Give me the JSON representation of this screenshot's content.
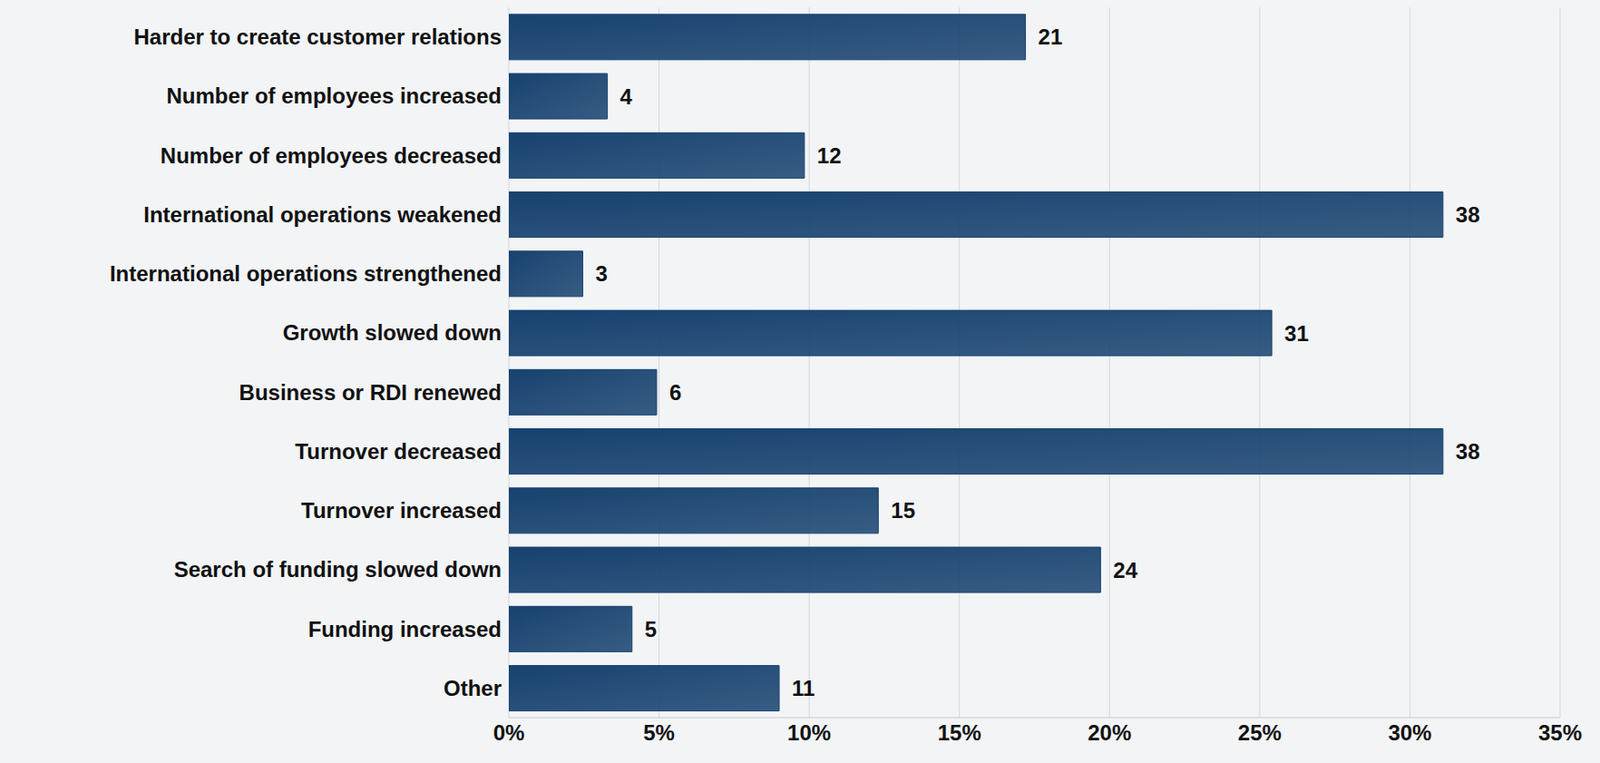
{
  "chart_data": {
    "type": "bar",
    "orientation": "horizontal",
    "categories": [
      "Harder to create customer relations",
      "Number of employees increased",
      "Number of employees decreased",
      "International operations weakened",
      "International operations strengthened",
      "Growth slowed down",
      "Business or RDI renewed",
      "Turnover decreased",
      "Turnover increased",
      "Search of funding slowed down",
      "Funding increased",
      "Other"
    ],
    "values": [
      17.2,
      3.28,
      9.84,
      31.1,
      2.46,
      25.4,
      4.92,
      31.1,
      12.3,
      19.7,
      4.1,
      9.0
    ],
    "counts": [
      21,
      4,
      12,
      38,
      3,
      31,
      6,
      38,
      15,
      24,
      5,
      11
    ],
    "color": "#17426f",
    "xlim": [
      0,
      35
    ],
    "xticks": [
      {
        "value": 0,
        "label": "0%"
      },
      {
        "value": 5,
        "label": "5%"
      },
      {
        "value": 10,
        "label": "10%"
      },
      {
        "value": 15,
        "label": "15%"
      },
      {
        "value": 20,
        "label": "20%"
      },
      {
        "value": 25,
        "label": "25%"
      },
      {
        "value": 30,
        "label": "30%"
      },
      {
        "value": 35,
        "label": "35%"
      }
    ],
    "grid": true
  }
}
